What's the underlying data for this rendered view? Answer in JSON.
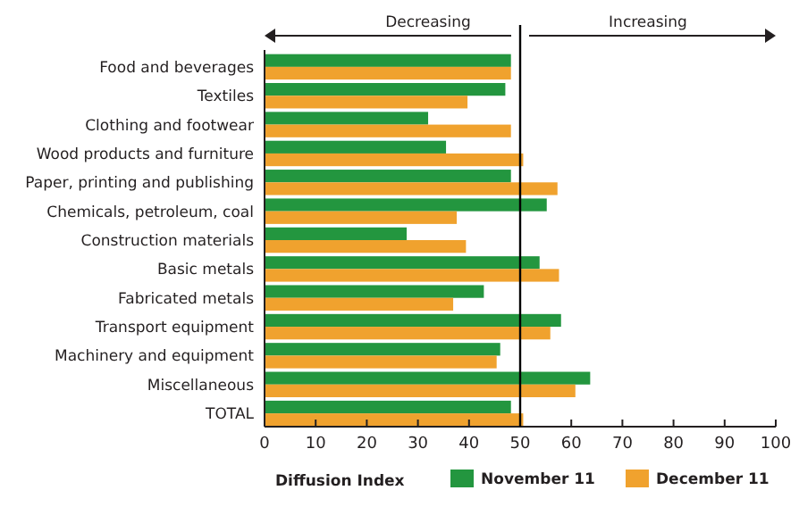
{
  "chart_data": {
    "type": "bar",
    "orientation": "horizontal",
    "categories": [
      "Food and beverages",
      "Textiles",
      "Clothing and footwear",
      "Wood products and furniture",
      "Paper, printing and publishing",
      "Chemicals, petroleum, coal",
      "Construction materials",
      "Basic metals",
      "Fabricated metals",
      "Transport equipment",
      "Machinery and equipment",
      "Miscellaneous",
      "TOTAL"
    ],
    "series": [
      {
        "name": "November 11",
        "color": "#23963f",
        "values": [
          48.2,
          47.1,
          32,
          35.5,
          48.2,
          55.2,
          27.8,
          53.8,
          42.9,
          58,
          46.1,
          63.7,
          48.2
        ]
      },
      {
        "name": "December 11",
        "color": "#f0a22e",
        "values": [
          48.2,
          39.7,
          48.2,
          50.6,
          57.3,
          37.6,
          39.4,
          57.6,
          36.9,
          55.9,
          45.4,
          60.8,
          50.6
        ]
      }
    ],
    "xlim": [
      0,
      100
    ],
    "xticks": [
      0,
      10,
      20,
      30,
      40,
      50,
      60,
      70,
      80,
      90,
      100
    ],
    "legend_title": "Diffusion Index",
    "legend": "bottom",
    "ref_lines": [
      {
        "axis": "x",
        "value": 50,
        "color": "#000000"
      }
    ],
    "annotations": [
      "Decreasing",
      "Increasing"
    ]
  }
}
